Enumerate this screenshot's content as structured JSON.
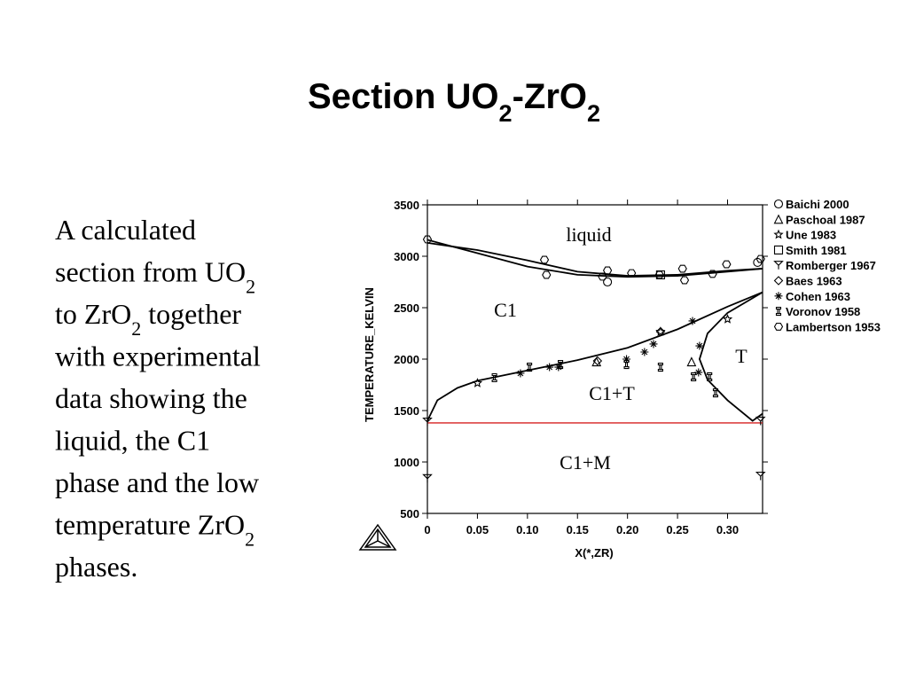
{
  "slide": {
    "title": [
      "Section UO",
      "2",
      "-ZrO",
      "2"
    ],
    "body": [
      [
        "A calculated"
      ],
      [
        "section from UO",
        "2"
      ],
      [
        "to ZrO",
        "2",
        " together"
      ],
      [
        "with experimental"
      ],
      [
        "data showing the"
      ],
      [
        "liquid, the C1"
      ],
      [
        "phase and the low"
      ],
      [
        "temperature ZrO",
        "2"
      ],
      [
        "phases."
      ]
    ]
  },
  "chart_data": {
    "type": "scatter",
    "xlabel": "X(*,ZR)",
    "ylabel": "TEMPERATURE_KELVIN",
    "xlim": [
      0,
      0.335
    ],
    "ylim": [
      500,
      3500
    ],
    "xticks": [
      0,
      0.05,
      {
        "value": 0.1,
        "label": "0.10"
      },
      0.15,
      {
        "value": 0.2,
        "label": "0.20"
      },
      0.25,
      {
        "value": 0.3,
        "label": "0.30"
      }
    ],
    "yticks": [
      500,
      1000,
      1500,
      2000,
      2500,
      3000,
      3500
    ],
    "annotations": [
      "liquid",
      "C1",
      "C1+T",
      "T",
      "C1+M"
    ],
    "lines": [
      {
        "color": "#000000",
        "x": [
          0,
          0.05,
          0.1,
          0.15,
          0.2,
          0.25,
          0.3,
          0.335
        ],
        "values": [
          3160,
          3030,
          2900,
          2820,
          2800,
          2810,
          2850,
          2880
        ]
      },
      {
        "color": "#000000",
        "x": [
          0,
          0.05,
          0.1,
          0.15,
          0.2,
          0.25,
          0.3,
          0.335
        ],
        "values": [
          3130,
          3060,
          2960,
          2850,
          2810,
          2820,
          2860,
          2880
        ]
      },
      {
        "color": "#000000",
        "x": [
          0,
          0.01,
          0.03,
          0.05,
          0.1,
          0.15,
          0.2,
          0.25,
          0.3,
          0.335
        ],
        "values": [
          1400,
          1600,
          1720,
          1790,
          1890,
          1990,
          2110,
          2290,
          2510,
          2650
        ]
      },
      {
        "color": "#000000",
        "x": [
          0.335,
          0.3,
          0.28,
          0.272,
          0.28,
          0.3,
          0.325,
          0.335
        ],
        "values": [
          2650,
          2450,
          2250,
          2000,
          1800,
          1600,
          1400,
          1470
        ]
      }
    ],
    "hline": {
      "value": 1380,
      "color": "#d62020"
    },
    "series": [
      {
        "name": "Baichi 2000",
        "marker": "circle",
        "color": "#000000",
        "x": [
          0.18,
          0.33
        ],
        "values": [
          2750,
          2940
        ]
      },
      {
        "name": "Paschoal 1987",
        "marker": "triangle",
        "color": "#000000",
        "x": [
          0.169,
          0.264
        ],
        "values": [
          1974,
          1974
        ]
      },
      {
        "name": "Une 1983",
        "marker": "star",
        "color": "#000000",
        "x": [
          0.05,
          0.233,
          0.3
        ],
        "values": [
          1767,
          2267,
          2388
        ]
      },
      {
        "name": "Smith 1981",
        "marker": "square",
        "color": "#000000",
        "x": [
          0.233
        ],
        "values": [
          2819
        ]
      },
      {
        "name": "Romberger 1967",
        "marker": "tri-down",
        "color": "#000000",
        "x": [
          0,
          0.333,
          0,
          0.333
        ],
        "values": [
          1388,
          862,
          838,
          1397
        ]
      },
      {
        "name": "Baes 1963",
        "marker": "diamond",
        "color": "#000000",
        "x": [
          0.17,
          0.233
        ],
        "values": [
          1983,
          2267
        ]
      },
      {
        "name": "Cohen 1963",
        "marker": "asterisk",
        "color": "#000000",
        "x": [
          0.093,
          0.122,
          0.131,
          0.199,
          0.217,
          0.226,
          0.265,
          0.272,
          0.271
        ],
        "values": [
          1862,
          1922,
          1922,
          2000,
          2069,
          2147,
          2371,
          2129,
          1871
        ]
      },
      {
        "name": "Voronov 1958",
        "marker": "hourglass",
        "color": "#000000",
        "x": [
          0.067,
          0.102,
          0.133,
          0.199,
          0.233,
          0.266,
          0.282,
          0.288
        ],
        "values": [
          1819,
          1922,
          1948,
          1948,
          1922,
          1828,
          1828,
          1672
        ]
      },
      {
        "name": "Lambertson 1953",
        "marker": "hexagon",
        "color": "#000000",
        "x": [
          0,
          0.117,
          0.119,
          0.175,
          0.18,
          0.204,
          0.232,
          0.255,
          0.257,
          0.285,
          0.299,
          0.333
        ],
        "values": [
          3164,
          2966,
          2819,
          2802,
          2862,
          2836,
          2819,
          2879,
          2767,
          2828,
          2922,
          2974
        ]
      }
    ]
  }
}
